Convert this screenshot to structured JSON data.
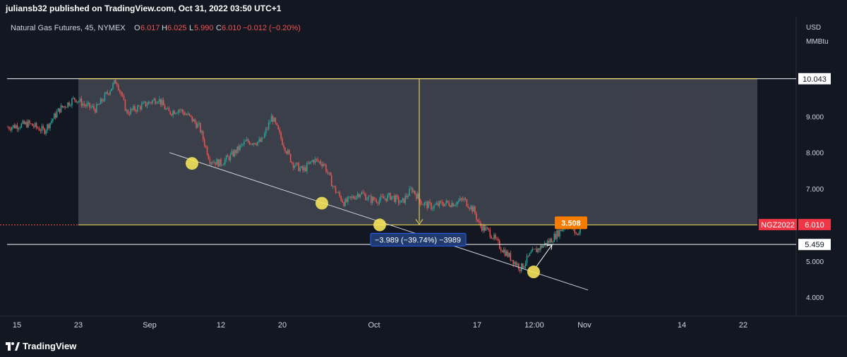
{
  "publisher": "juliansb32 published on TradingView.com, Oct 31, 2022 03:50 UTC+1",
  "footer_logo_text": "TradingView",
  "colors": {
    "background": "#131722",
    "panel": "#1e222d",
    "up_candle": "#26a69a",
    "down_candle": "#ef5350",
    "zone_line": "#f5e35a",
    "trend_line": "#d1d4dc",
    "zone_fill": "#5d606b",
    "price_label": "#f23645"
  },
  "legend": {
    "symbol": "Natural Gas Futures, 45, NYMEX",
    "o_label": "O",
    "o_value": "6.017",
    "h_label": "H",
    "h_value": "6.025",
    "l_label": "L",
    "l_value": "5.990",
    "c_label": "C",
    "c_value": "6.010",
    "change": "−0.012 (−0.20%)"
  },
  "chart_data": {
    "type": "candlestick",
    "currency": "USD",
    "unit": "MMBtu",
    "y_ticks": [
      "4.000",
      "5.000",
      "6.000",
      "7.000",
      "8.000",
      "9.000"
    ],
    "ylim": [
      3.0,
      10.7
    ],
    "x_ticks": [
      "15",
      "23",
      "Sep",
      "12",
      "20",
      "Oct",
      "17",
      "12:00",
      "Nov",
      "14",
      "22"
    ],
    "price_path": [
      [
        0,
        8.7
      ],
      [
        4,
        8.8
      ],
      [
        7,
        8.6
      ],
      [
        10,
        9.2
      ],
      [
        13,
        9.5
      ],
      [
        15,
        9.3
      ],
      [
        17,
        9.2
      ],
      [
        19,
        9.6
      ],
      [
        21,
        10.0
      ],
      [
        23,
        9.1
      ],
      [
        26,
        9.3
      ],
      [
        29,
        9.5
      ],
      [
        31,
        9.1
      ],
      [
        33,
        9.2
      ],
      [
        35,
        9.0
      ],
      [
        37,
        8.7
      ],
      [
        39,
        7.8
      ],
      [
        41,
        7.7
      ],
      [
        43,
        7.9
      ],
      [
        46,
        8.3
      ],
      [
        49,
        8.3
      ],
      [
        51,
        9.0
      ],
      [
        53,
        8.3
      ],
      [
        55,
        7.7
      ],
      [
        57,
        7.5
      ],
      [
        59,
        7.8
      ],
      [
        61,
        7.7
      ],
      [
        63,
        7.0
      ],
      [
        65,
        6.6
      ],
      [
        68,
        6.9
      ],
      [
        70,
        6.7
      ],
      [
        72,
        6.7
      ],
      [
        74,
        6.8
      ],
      [
        76,
        6.6
      ],
      [
        78,
        7.0
      ],
      [
        80,
        6.6
      ],
      [
        82,
        6.5
      ],
      [
        84,
        6.6
      ],
      [
        86,
        6.6
      ],
      [
        88,
        6.7
      ],
      [
        90,
        6.4
      ],
      [
        91,
        6.0
      ],
      [
        93,
        5.8
      ],
      [
        95,
        5.4
      ],
      [
        97,
        5.1
      ],
      [
        99,
        4.8
      ],
      [
        101,
        5.2
      ],
      [
        103,
        5.4
      ],
      [
        105,
        5.6
      ],
      [
        107,
        5.9
      ],
      [
        108,
        6.02
      ],
      [
        109,
        5.9
      ],
      [
        110,
        5.7
      ],
      [
        110.5,
        6.01
      ]
    ],
    "last_price": "6.010",
    "last_price_tag": "NGZ2022",
    "horizontal_lines": [
      {
        "price": 10.043,
        "label": "10.043"
      },
      {
        "price": 5.459,
        "label": "5.459"
      }
    ],
    "zone_top": 10.043,
    "zone_bottom": 6.0,
    "measure_label": "−3.989 (−39.74%) −3989",
    "target_label": "3.508",
    "trend_touch_points": [
      {
        "price": 7.7
      },
      {
        "price": 6.6
      },
      {
        "price": 6.0
      },
      {
        "price": 4.7
      }
    ]
  }
}
